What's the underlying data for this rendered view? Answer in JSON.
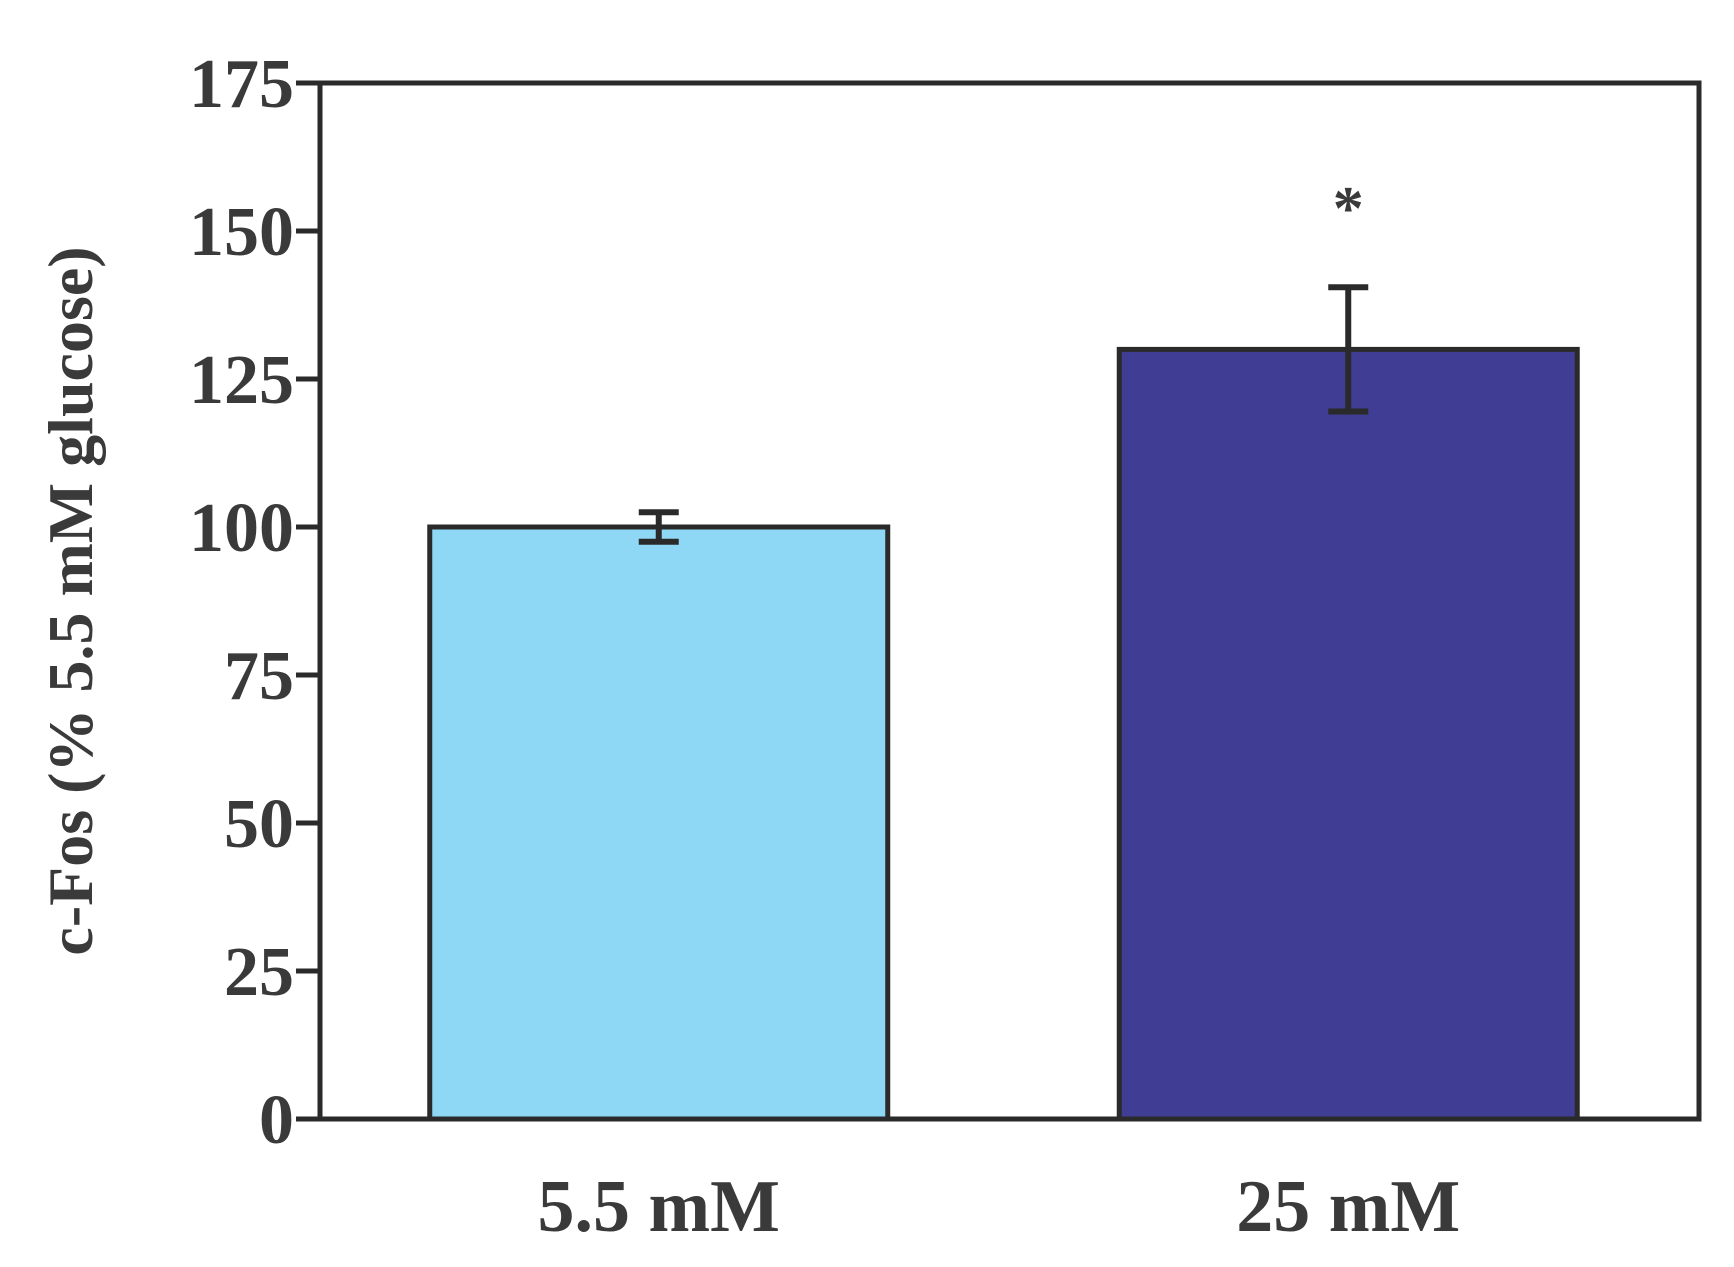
{
  "chart_data": {
    "type": "bar",
    "title": "",
    "xlabel": "",
    "ylabel": "c-Fos (% 5.5 mM glucose)",
    "categories": [
      "5.5 mM",
      "25 mM"
    ],
    "values": [
      100,
      130
    ],
    "errors": [
      2.5,
      10.5
    ],
    "annotations": [
      "",
      "*"
    ],
    "ylim": [
      0,
      175
    ],
    "yticks": [
      0,
      25,
      50,
      75,
      100,
      125,
      150,
      175
    ],
    "grid": false,
    "legend": "none",
    "colors": [
      "#8fd8f5",
      "#3f3d94"
    ],
    "axis_color": "#2a2a2a"
  }
}
